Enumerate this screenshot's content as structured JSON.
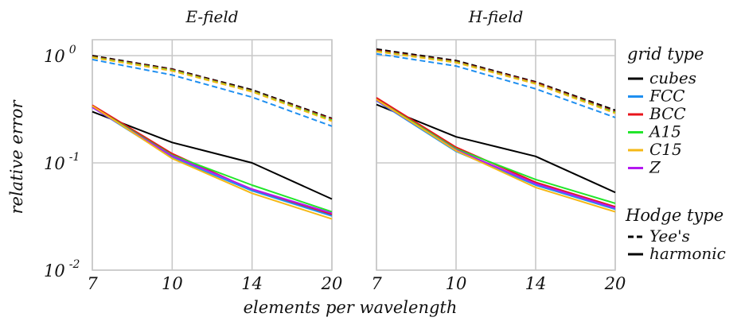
{
  "chart_data": {
    "type": "line",
    "xlabel": "elements per wavelength",
    "ylabel": "relative error",
    "x": [
      7,
      10,
      14,
      20
    ],
    "x_tick_labels": [
      "7",
      "10",
      "14",
      "20"
    ],
    "y_scale": "log",
    "ylim": [
      0.01,
      1.6
    ],
    "y_ticks": [
      {
        "value": 1,
        "base": "10",
        "exp": "0"
      },
      {
        "value": 0.1,
        "base": "10",
        "exp": "-1"
      },
      {
        "value": 0.01,
        "base": "10",
        "exp": "-2"
      }
    ],
    "grid": true,
    "legend_placement": "right",
    "grid_type_legend": {
      "title": "grid type",
      "entries": [
        {
          "name": "cubes",
          "color": "#000000"
        },
        {
          "name": "FCC",
          "color": "#1f8ff0"
        },
        {
          "name": "BCC",
          "color": "#e8141b"
        },
        {
          "name": "A15",
          "color": "#22e52b"
        },
        {
          "name": "C15",
          "color": "#f5b816"
        },
        {
          "name": "Z",
          "color": "#b418f0"
        }
      ]
    },
    "hodge_type_legend": {
      "title": "Hodge type",
      "entries": [
        {
          "name": "Yee's",
          "style": "dashed"
        },
        {
          "name": "harmonic",
          "style": "solid"
        }
      ]
    },
    "panels": [
      {
        "title": "E-field",
        "series": [
          {
            "grid": "cubes",
            "hodge": "Yee's",
            "values": [
              1.0,
              0.75,
              0.48,
              0.26
            ]
          },
          {
            "grid": "BCC",
            "hodge": "Yee's",
            "values": [
              0.98,
              0.74,
              0.47,
              0.255
            ]
          },
          {
            "grid": "A15",
            "hodge": "Yee's",
            "values": [
              0.97,
              0.73,
              0.465,
              0.25
            ]
          },
          {
            "grid": "C15",
            "hodge": "Yee's",
            "values": [
              0.96,
              0.72,
              0.46,
              0.245
            ]
          },
          {
            "grid": "FCC",
            "hodge": "Yee's",
            "values": [
              0.92,
              0.66,
              0.41,
              0.22
            ]
          },
          {
            "grid": "cubes",
            "hodge": "harmonic",
            "values": [
              0.3,
              0.155,
              0.1,
              0.046
            ]
          },
          {
            "grid": "BCC",
            "hodge": "harmonic",
            "values": [
              0.345,
              0.122,
              0.056,
              0.033
            ]
          },
          {
            "grid": "A15",
            "hodge": "harmonic",
            "values": [
              0.335,
              0.118,
              0.062,
              0.035
            ]
          },
          {
            "grid": "FCC",
            "hodge": "harmonic",
            "values": [
              0.33,
              0.112,
              0.055,
              0.032
            ]
          },
          {
            "grid": "Z",
            "hodge": "harmonic",
            "values": [
              0.33,
              0.116,
              0.057,
              0.034
            ]
          },
          {
            "grid": "C15",
            "hodge": "harmonic",
            "values": [
              0.34,
              0.11,
              0.052,
              0.03
            ]
          }
        ]
      },
      {
        "title": "H-field",
        "series": [
          {
            "grid": "cubes",
            "hodge": "Yee's",
            "values": [
              1.15,
              0.9,
              0.57,
              0.31
            ]
          },
          {
            "grid": "BCC",
            "hodge": "Yee's",
            "values": [
              1.12,
              0.88,
              0.56,
              0.3
            ]
          },
          {
            "grid": "A15",
            "hodge": "Yee's",
            "values": [
              1.1,
              0.87,
              0.55,
              0.295
            ]
          },
          {
            "grid": "C15",
            "hodge": "Yee's",
            "values": [
              1.09,
              0.86,
              0.545,
              0.29
            ]
          },
          {
            "grid": "FCC",
            "hodge": "Yee's",
            "values": [
              1.04,
              0.8,
              0.49,
              0.265
            ]
          },
          {
            "grid": "cubes",
            "hodge": "harmonic",
            "values": [
              0.35,
              0.175,
              0.115,
              0.053
            ]
          },
          {
            "grid": "BCC",
            "hodge": "harmonic",
            "values": [
              0.405,
              0.14,
              0.066,
              0.039
            ]
          },
          {
            "grid": "A15",
            "hodge": "harmonic",
            "values": [
              0.39,
              0.135,
              0.07,
              0.042
            ]
          },
          {
            "grid": "FCC",
            "hodge": "harmonic",
            "values": [
              0.38,
              0.128,
              0.062,
              0.037
            ]
          },
          {
            "grid": "Z",
            "hodge": "harmonic",
            "values": [
              0.385,
              0.132,
              0.064,
              0.038
            ]
          },
          {
            "grid": "C15",
            "hodge": "harmonic",
            "values": [
              0.39,
              0.13,
              0.059,
              0.035
            ]
          }
        ]
      }
    ]
  }
}
